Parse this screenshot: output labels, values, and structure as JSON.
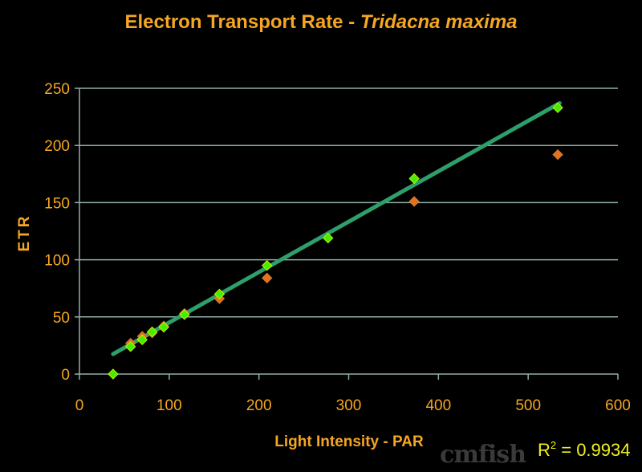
{
  "chart_data": {
    "type": "scatter",
    "title_main": "Electron Transport Rate - ",
    "title_italic": "Tridacna maxima",
    "xlabel": "Light Intensity - PAR",
    "ylabel": "ETR",
    "xlim": [
      0,
      600
    ],
    "ylim": [
      0,
      250
    ],
    "xticks": [
      0,
      100,
      200,
      300,
      400,
      500,
      600
    ],
    "yticks": [
      0,
      50,
      100,
      150,
      200,
      250
    ],
    "grid": "horizontal",
    "series": [
      {
        "color": "#e8701a",
        "x": [
          57,
          70,
          81,
          94,
          117,
          156,
          209,
          373,
          533
        ],
        "y": [
          27,
          33,
          36,
          42,
          53,
          66,
          84,
          151,
          192
        ]
      },
      {
        "color": "#44ee00",
        "x": [
          37.5,
          57,
          70,
          81,
          94,
          117,
          156,
          209,
          277,
          373,
          533
        ],
        "y": [
          0,
          24,
          30,
          37,
          41,
          52,
          70,
          95,
          119,
          171,
          233
        ]
      }
    ],
    "trendline": {
      "color": "#2e9e6a",
      "x": [
        37.5,
        535
      ],
      "y": [
        17.5,
        237
      ]
    },
    "annotation": {
      "r_label": "R",
      "exponent": "2",
      "value": " = 0.9934"
    }
  },
  "watermark": "cmfish"
}
